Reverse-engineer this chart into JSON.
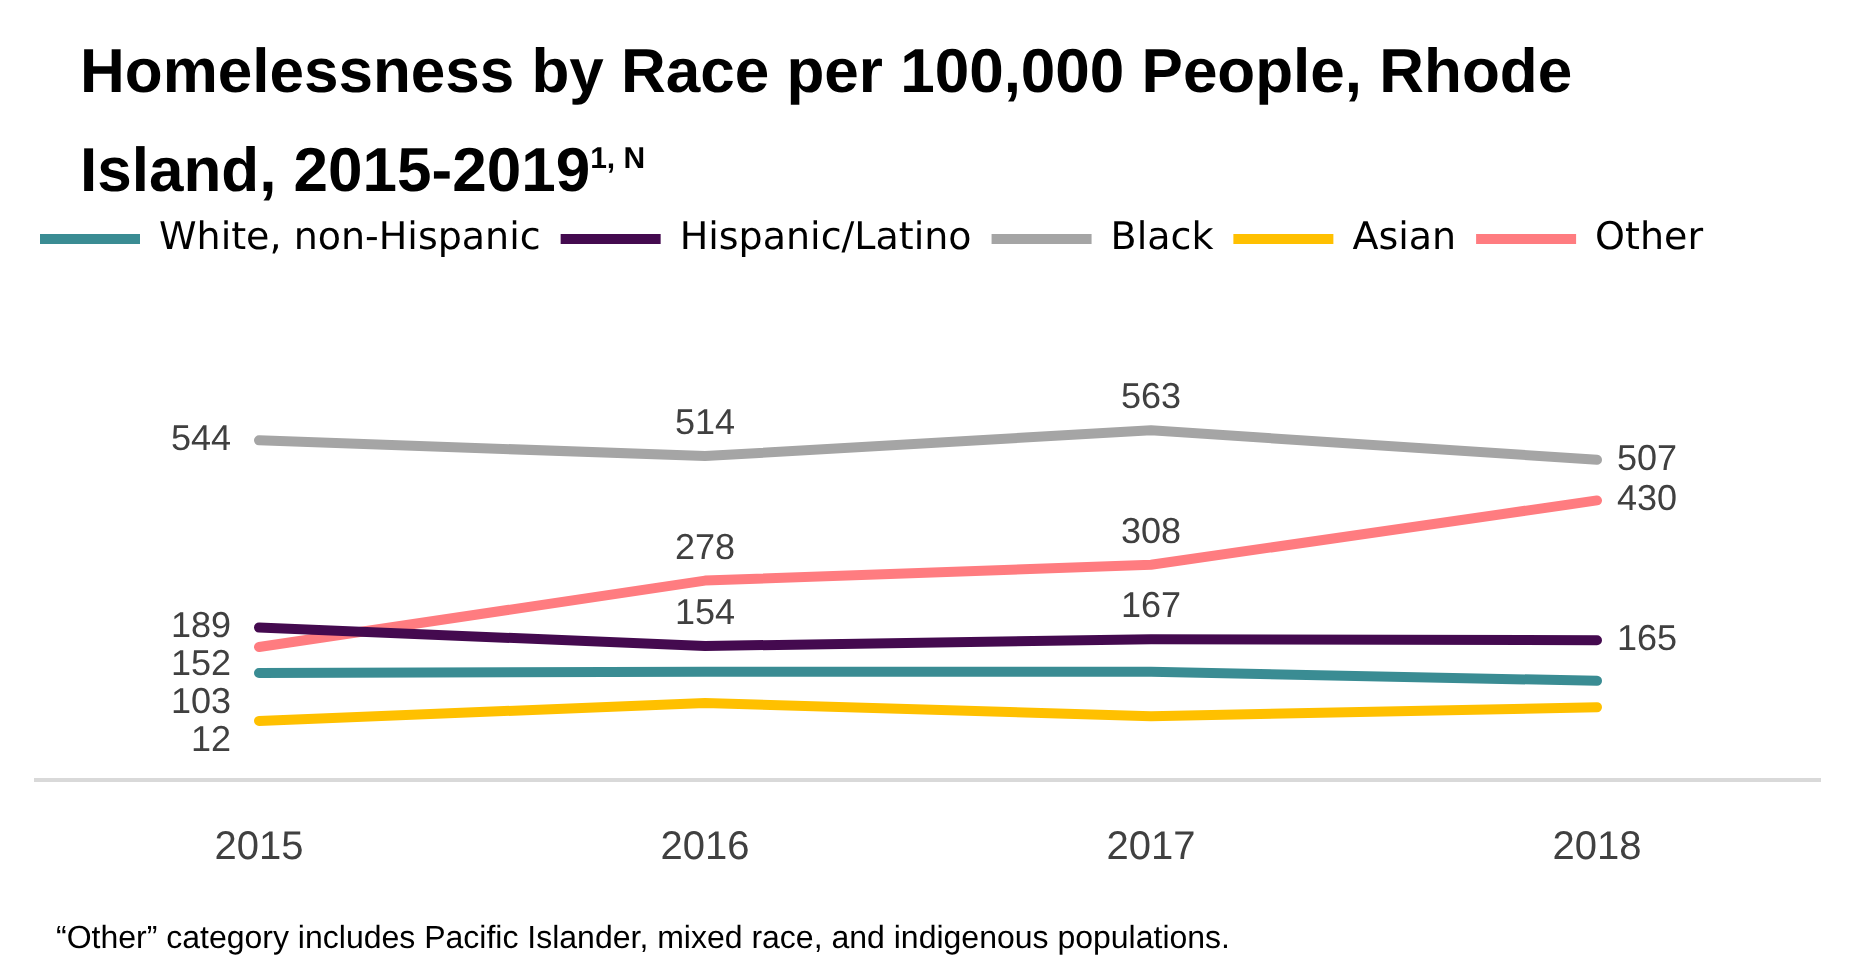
{
  "chart_data": {
    "type": "line",
    "title": "Homelessness by Race per 100,000 People, Rhode Island, 2015-2019$^{1, N}$",
    "categories": [
      "2015",
      "2016",
      "2017",
      "2018"
    ],
    "series": [
      {
        "name": "White, non-Hispanic",
        "color": "#3a8c93",
        "values": [
          103,
          105,
          105,
          88
        ],
        "value_labels": [
          "103",
          null,
          null,
          null
        ]
      },
      {
        "name": "Hispanic/Latino",
        "color": "#440a4f",
        "values": [
          189,
          154,
          167,
          165
        ],
        "value_labels": [
          "189",
          "154",
          "167",
          "165"
        ]
      },
      {
        "name": "Black",
        "color": "#a5a5a5",
        "values": [
          544,
          514,
          563,
          507
        ],
        "value_labels": [
          "544",
          "514",
          "563",
          "507"
        ]
      },
      {
        "name": "Asian",
        "color": "#ffc000",
        "values": [
          12,
          46,
          21,
          38
        ],
        "value_labels": [
          "12",
          null,
          null,
          null
        ]
      },
      {
        "name": "Other",
        "color": "#ff7c80",
        "values": [
          152,
          278,
          308,
          430
        ],
        "value_labels": [
          "152",
          "278",
          "308",
          "430"
        ]
      }
    ],
    "tick_labels": "x",
    "grid": false,
    "legend": "top",
    "marker": "none",
    "line_style": "solid",
    "annotations": [
      "“Other” category includes Pacific Islander,  mixed race, and indigenous populations."
    ]
  }
}
